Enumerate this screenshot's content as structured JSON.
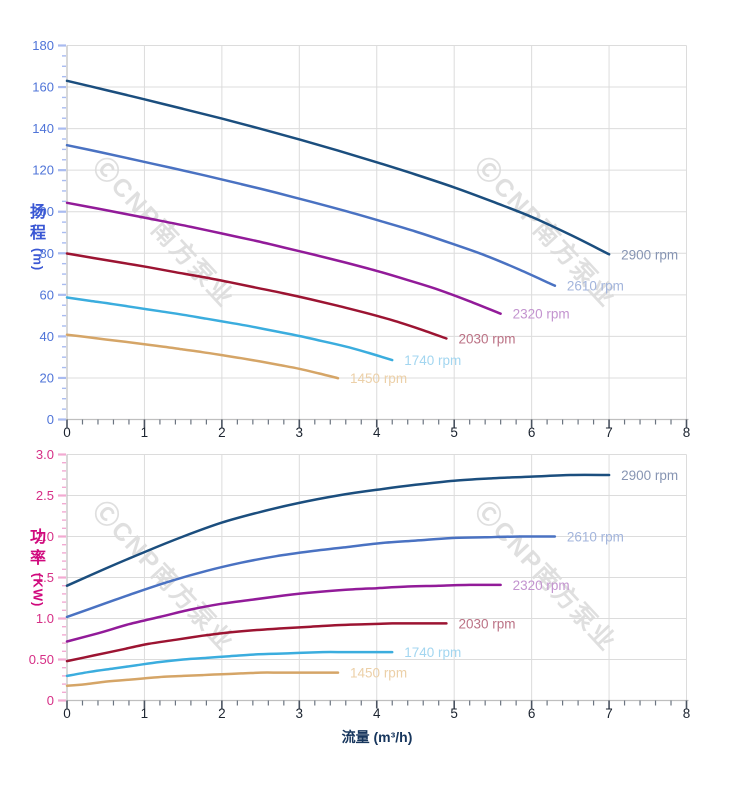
{
  "watermark": {
    "text": "ⒸCNP南方泵业"
  },
  "axis_titles": {
    "head_chars": [
      "扬",
      "程"
    ],
    "head_unit": "(m)",
    "power_chars": [
      "功",
      "率"
    ],
    "power_unit": "(KW)",
    "flow": "流量 (m³/h)"
  },
  "chart_data": [
    {
      "type": "line",
      "ylabel": "扬程 (m)",
      "xlabel": "流量 (m³/h)",
      "xlim": [
        0,
        8
      ],
      "ylim": [
        0,
        180
      ],
      "x_major": 1,
      "x_minor": 0.2,
      "y_major": 20,
      "y_minor": 5,
      "x_tick_labels": [
        "0",
        "1",
        "2",
        "3",
        "4",
        "5",
        "6",
        "7",
        "8"
      ],
      "y_tick_labels": [
        "0",
        "20",
        "40",
        "60",
        "80",
        "100",
        "120",
        "140",
        "160",
        "180"
      ],
      "grid": true,
      "legend_position": "end-of-line",
      "y_tick_color": "#a9bbf0",
      "y_label_color": "#4f74d8",
      "series": [
        {
          "name": "2900 rpm",
          "color": "#1b4e7e",
          "label_color": "#8795b3",
          "x": [
            0,
            0.5,
            1,
            1.5,
            2,
            2.5,
            3,
            3.5,
            4,
            4.5,
            5,
            5.5,
            6,
            6.5,
            7
          ],
          "y": [
            163,
            158.6,
            154.1,
            149.5,
            144.8,
            139.9,
            134.8,
            129.4,
            123.8,
            117.9,
            111.7,
            104.8,
            97.5,
            88.9,
            79.5
          ]
        },
        {
          "name": "2610 rpm",
          "color": "#4a72c2",
          "label_color": "#a3b5dc",
          "x": [
            0,
            0.45,
            0.9,
            1.35,
            1.8,
            2.25,
            2.7,
            3.15,
            3.6,
            4.05,
            4.5,
            4.95,
            5.4,
            5.85,
            6.3
          ],
          "y": [
            132,
            128.5,
            124.8,
            121.1,
            117.3,
            113.3,
            109.2,
            104.8,
            100.3,
            95.5,
            90.5,
            84.9,
            79,
            72,
            64.4
          ]
        },
        {
          "name": "2320 rpm",
          "color": "#921b99",
          "label_color": "#c394cf",
          "x": [
            0,
            0.4,
            0.8,
            1.2,
            1.6,
            2,
            2.4,
            2.8,
            3.2,
            3.6,
            4,
            4.4,
            4.8,
            5.2,
            5.6
          ],
          "y": [
            104.3,
            101.5,
            98.6,
            95.7,
            92.7,
            89.5,
            86.3,
            82.8,
            79.2,
            75.5,
            71.5,
            67.1,
            62.4,
            56.9,
            50.9
          ]
        },
        {
          "name": "2030 rpm",
          "color": "#9c1432",
          "label_color": "#bb7285",
          "x": [
            0,
            0.35,
            0.7,
            1.05,
            1.4,
            1.75,
            2.1,
            2.45,
            2.8,
            3.15,
            3.5,
            3.85,
            4.2,
            4.55,
            4.9
          ],
          "y": [
            79.9,
            77.7,
            75.5,
            73.3,
            70.9,
            68.6,
            66.1,
            63.4,
            60.7,
            57.8,
            54.7,
            51.4,
            47.8,
            43.6,
            39
          ]
        },
        {
          "name": "1740 rpm",
          "color": "#3badde",
          "label_color": "#a3d6f0",
          "x": [
            0,
            0.3,
            0.6,
            0.9,
            1.2,
            1.5,
            1.8,
            2.1,
            2.4,
            2.7,
            3,
            3.3,
            3.6,
            3.9,
            4.2
          ],
          "y": [
            58.7,
            57.1,
            55.5,
            53.8,
            52.1,
            50.4,
            48.5,
            46.6,
            44.6,
            42.4,
            40.2,
            37.7,
            35.1,
            32,
            28.6
          ]
        },
        {
          "name": "1450 rpm",
          "color": "#d5a567",
          "label_color": "#ecd0a8",
          "x": [
            0,
            0.25,
            0.5,
            0.75,
            1,
            1.25,
            1.5,
            1.75,
            2,
            2.25,
            2.5,
            2.75,
            3,
            3.25,
            3.5
          ],
          "y": [
            40.8,
            39.7,
            38.5,
            37.4,
            36.2,
            35,
            33.7,
            32.4,
            31,
            29.5,
            27.9,
            26.2,
            24.4,
            22.2,
            19.9
          ]
        }
      ]
    },
    {
      "type": "line",
      "ylabel": "功率 (KW)",
      "xlabel": "流量 (m³/h)",
      "xlim": [
        0,
        8
      ],
      "ylim": [
        0,
        3.0
      ],
      "x_major": 1,
      "x_minor": 0.2,
      "y_major": 0.5,
      "y_minor": 0.1,
      "x_tick_labels": [
        "0",
        "1",
        "2",
        "3",
        "4",
        "5",
        "6",
        "7",
        "8"
      ],
      "y_tick_labels": [
        "0",
        "0.50",
        "1.0",
        "1.5",
        "2.0",
        "2.5",
        "3.0"
      ],
      "grid": true,
      "legend_position": "end-of-line",
      "y_tick_color": "#f2aad2",
      "y_label_color": "#d62e86",
      "series": [
        {
          "name": "2900 rpm",
          "color": "#1b4e7e",
          "label_color": "#8795b3",
          "x": [
            0,
            0.5,
            1,
            1.5,
            2,
            2.5,
            3,
            3.5,
            4,
            4.5,
            5,
            5.5,
            6,
            6.5,
            7
          ],
          "y": [
            1.4,
            1.61,
            1.81,
            2.0,
            2.17,
            2.3,
            2.41,
            2.5,
            2.57,
            2.63,
            2.68,
            2.71,
            2.73,
            2.75,
            2.75
          ]
        },
        {
          "name": "2610 rpm",
          "color": "#4a72c2",
          "label_color": "#a3b5dc",
          "x": [
            0,
            0.45,
            0.9,
            1.35,
            1.8,
            2.25,
            2.7,
            3.15,
            3.6,
            4.05,
            4.5,
            4.95,
            5.4,
            5.85,
            6.3
          ],
          "y": [
            1.02,
            1.17,
            1.32,
            1.46,
            1.58,
            1.68,
            1.76,
            1.82,
            1.87,
            1.92,
            1.95,
            1.98,
            1.99,
            2.0,
            2.0
          ]
        },
        {
          "name": "2320 rpm",
          "color": "#921b99",
          "label_color": "#c394cf",
          "x": [
            0,
            0.4,
            0.8,
            1.2,
            1.6,
            2,
            2.4,
            2.8,
            3.2,
            3.6,
            4,
            4.4,
            4.8,
            5.2,
            5.6
          ],
          "y": [
            0.72,
            0.82,
            0.93,
            1.02,
            1.11,
            1.18,
            1.23,
            1.28,
            1.32,
            1.35,
            1.37,
            1.39,
            1.4,
            1.41,
            1.41
          ]
        },
        {
          "name": "2030 rpm",
          "color": "#9c1432",
          "label_color": "#bb7285",
          "x": [
            0,
            0.35,
            0.7,
            1.05,
            1.4,
            1.75,
            2.1,
            2.45,
            2.8,
            3.15,
            3.5,
            3.85,
            4.2,
            4.55,
            4.9
          ],
          "y": [
            0.48,
            0.55,
            0.62,
            0.69,
            0.74,
            0.79,
            0.83,
            0.86,
            0.88,
            0.9,
            0.92,
            0.93,
            0.94,
            0.94,
            0.94
          ]
        },
        {
          "name": "1740 rpm",
          "color": "#3badde",
          "label_color": "#a3d6f0",
          "x": [
            0,
            0.3,
            0.6,
            0.9,
            1.2,
            1.5,
            1.8,
            2.1,
            2.4,
            2.7,
            3,
            3.3,
            3.6,
            3.9,
            4.2
          ],
          "y": [
            0.3,
            0.35,
            0.39,
            0.43,
            0.47,
            0.5,
            0.52,
            0.54,
            0.56,
            0.57,
            0.58,
            0.59,
            0.59,
            0.59,
            0.59
          ]
        },
        {
          "name": "1450 rpm",
          "color": "#d5a567",
          "label_color": "#ecd0a8",
          "x": [
            0,
            0.25,
            0.5,
            0.75,
            1,
            1.25,
            1.5,
            1.75,
            2,
            2.25,
            2.5,
            2.75,
            3,
            3.25,
            3.5
          ],
          "y": [
            0.18,
            0.2,
            0.23,
            0.25,
            0.27,
            0.29,
            0.3,
            0.31,
            0.32,
            0.33,
            0.34,
            0.34,
            0.34,
            0.34,
            0.34
          ]
        }
      ]
    }
  ]
}
